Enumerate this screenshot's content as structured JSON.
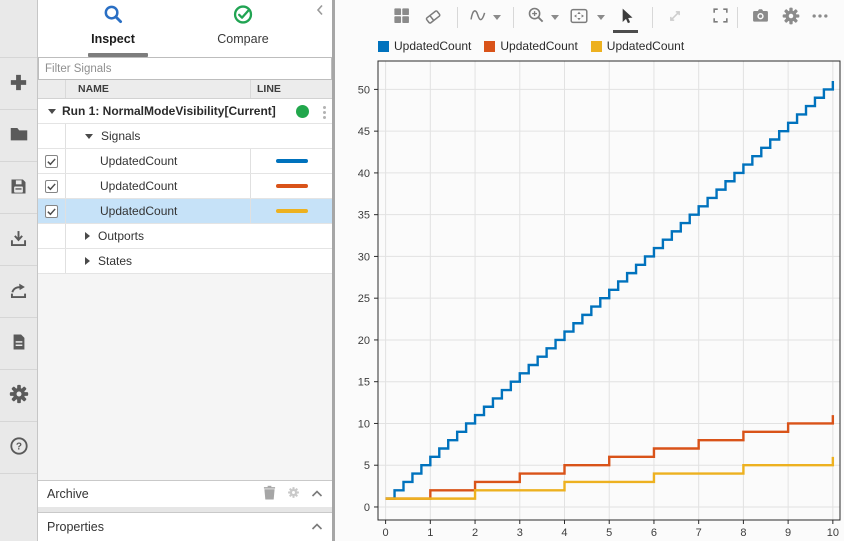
{
  "left_toolbar": {
    "buttons": [
      {
        "name": "new",
        "icon": "plus-icon"
      },
      {
        "name": "open",
        "icon": "folder-icon"
      },
      {
        "name": "save",
        "icon": "floppy-disk-icon"
      },
      {
        "name": "import",
        "icon": "import-tray-icon"
      },
      {
        "name": "export",
        "icon": "export-arrow-icon"
      },
      {
        "name": "create-report",
        "icon": "document-icon"
      },
      {
        "name": "preferences",
        "icon": "gear-icon"
      },
      {
        "name": "help",
        "icon": "question-circle-icon"
      }
    ]
  },
  "sidebar": {
    "tabs": [
      {
        "label": "Inspect",
        "icon": "search-icon",
        "active": true
      },
      {
        "label": "Compare",
        "icon": "check-circle-icon",
        "active": false
      }
    ],
    "filter_placeholder": "Filter Signals",
    "columns": {
      "name": "NAME",
      "line": "LINE"
    },
    "run": {
      "label": "Run 1: NormalModeVisibility[Current]",
      "status_color": "#22A74C",
      "expanded": true
    },
    "groups": [
      {
        "label": "Signals",
        "expanded": true
      },
      {
        "label": "Outports",
        "expanded": false
      },
      {
        "label": "States",
        "expanded": false
      }
    ],
    "signals": [
      {
        "name": "UpdatedCount",
        "checked": true,
        "selected": false,
        "color": "#0072BD"
      },
      {
        "name": "UpdatedCount",
        "checked": true,
        "selected": false,
        "color": "#D95319"
      },
      {
        "name": "UpdatedCount",
        "checked": true,
        "selected": true,
        "color": "#EDB120"
      }
    ],
    "archive_label": "Archive",
    "properties_label": "Properties"
  },
  "chart_toolbar": {
    "icons": [
      "subplot-layout",
      "clear-plots",
      "signal-trace",
      "zoom-in",
      "fit-to-view",
      "pointer",
      "pan",
      "fullscreen",
      "snapshot",
      "settings",
      "more-options"
    ],
    "active_tool": "pointer",
    "disabled_tools": [
      "pan"
    ]
  },
  "chart_data": {
    "type": "line",
    "style": "stairstep",
    "title": "",
    "xlabel": "",
    "ylabel": "",
    "grid": true,
    "legend_position": "top-left",
    "x": {
      "ticks": [
        0,
        1,
        2,
        3,
        4,
        5,
        6,
        7,
        8,
        9,
        10
      ],
      "lim": [
        -0.17,
        10.16
      ]
    },
    "y": {
      "ticks": [
        0,
        5,
        10,
        15,
        20,
        25,
        30,
        35,
        40,
        45,
        50
      ],
      "lim": [
        -1.56,
        53.4
      ]
    },
    "series": [
      {
        "name": "UpdatedCount",
        "color": "#0072BD",
        "x_start": 0,
        "x_end": 10,
        "y_start": 1,
        "y_end": 51,
        "step_interval": 0.2,
        "step_increment": 1
      },
      {
        "name": "UpdatedCount",
        "color": "#D95319",
        "x_start": 0,
        "x_end": 10,
        "y_start": 1,
        "y_end": 11,
        "step_interval": 1,
        "step_increment": 1
      },
      {
        "name": "UpdatedCount",
        "color": "#EDB120",
        "x_start": 0,
        "x_end": 10,
        "y_start": 1,
        "y_end": 6,
        "step_interval": 2,
        "step_increment": 1
      }
    ]
  }
}
